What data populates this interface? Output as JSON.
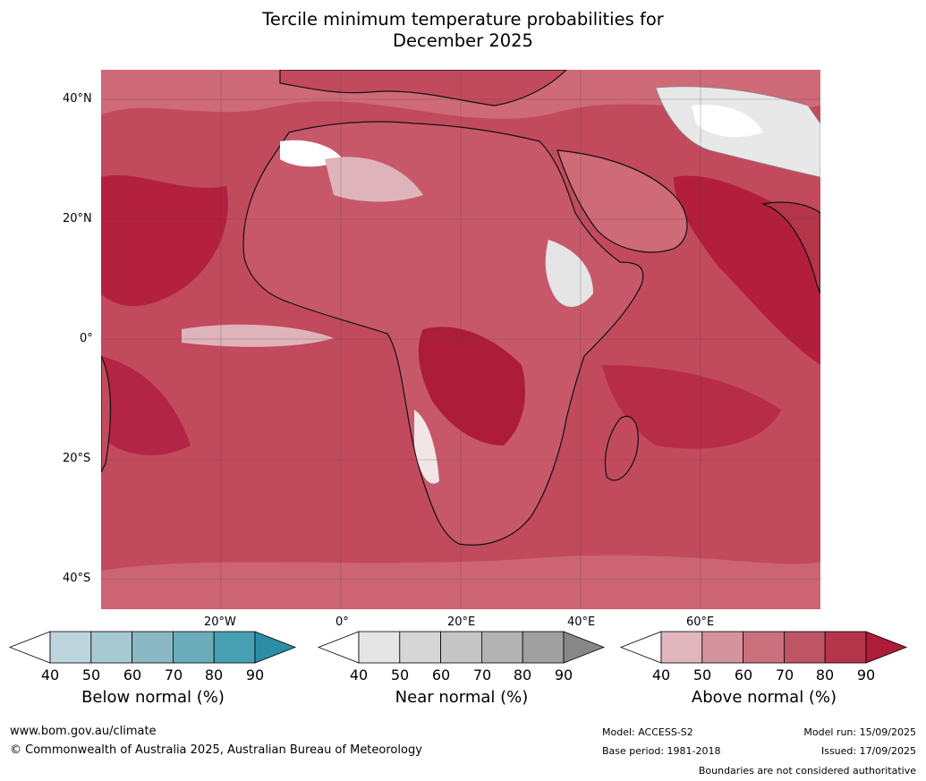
{
  "title_line1": "Tercile minimum temperature probabilities for",
  "title_line2": "December 2025",
  "lat_labels": [
    "40°N",
    "20°N",
    "0°",
    "20°S",
    "40°S"
  ],
  "lon_labels": [
    "20°W",
    "0°",
    "20°E",
    "40°E",
    "60°E"
  ],
  "legends": [
    {
      "caption": "Below normal (%)",
      "ticks": [
        "40",
        "50",
        "60",
        "70",
        "80",
        "90"
      ],
      "colors": [
        "#bdd5dc",
        "#a7c9d1",
        "#89b8c3",
        "#6aacba",
        "#46a0b2",
        "#2b8ea6"
      ]
    },
    {
      "caption": "Near normal (%)",
      "ticks": [
        "40",
        "50",
        "60",
        "70",
        "80",
        "90"
      ],
      "colors": [
        "#e5e5e5",
        "#d6d6d6",
        "#c5c5c5",
        "#b3b3b3",
        "#a0a0a0",
        "#878787"
      ]
    },
    {
      "caption": "Above normal (%)",
      "ticks": [
        "40",
        "50",
        "60",
        "70",
        "80",
        "90"
      ],
      "colors": [
        "#e0b6bc",
        "#d5949d",
        "#cb717d",
        "#bf5564",
        "#b5354a",
        "#ad1c38"
      ]
    }
  ],
  "footer": {
    "website": "www.bom.gov.au/climate",
    "copyright": "© Commonwealth of Australia 2025, Australian Bureau of Meteorology",
    "model": "Model: ACCESS-S2",
    "base_period": "Base period: 1981-2018",
    "model_run": "Model run: 15/09/2025",
    "issued": "Issued: 17/09/2025",
    "disclaimer": "Boundaries are not considered authoritative"
  }
}
